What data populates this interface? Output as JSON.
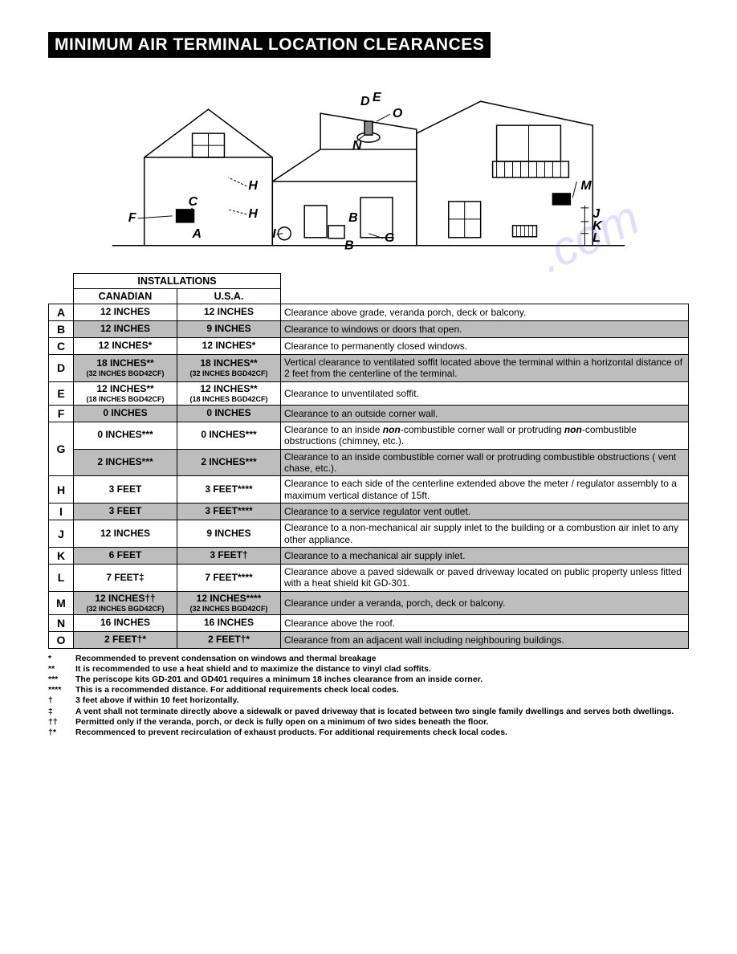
{
  "title": "MINIMUM AIR TERMINAL LOCATION CLEARANCES",
  "header": {
    "inst": "INSTALLATIONS",
    "can": "CANADIAN",
    "usa": "U.S.A."
  },
  "diagram_labels": [
    "A",
    "B",
    "C",
    "D",
    "E",
    "F",
    "G",
    "H",
    "I",
    "J",
    "K",
    "L",
    "M",
    "N",
    "O"
  ],
  "rows": [
    {
      "l": "A",
      "can": "12 INCHES",
      "usa": "12 INCHES",
      "desc": "Clearance above grade, veranda porch, deck or balcony."
    },
    {
      "l": "B",
      "can": "12 INCHES",
      "usa": "9 INCHES",
      "desc": "Clearance to windows or doors that open."
    },
    {
      "l": "C",
      "can": "12 INCHES*",
      "usa": "12 INCHES*",
      "desc": "Clearance to permanently closed windows."
    },
    {
      "l": "D",
      "can": "18 INCHES**",
      "can_sub": "(32 INCHES BGD42CF)",
      "usa": "18 INCHES**",
      "usa_sub": "(32 INCHES BGD42CF)",
      "desc": "Vertical clearance to ventilated soffit located above the terminal within a horizontal distance of 2 feet from the centerline of the terminal."
    },
    {
      "l": "E",
      "can": "12 INCHES**",
      "can_sub": "(18 INCHES BGD42CF)",
      "usa": "12 INCHES**",
      "usa_sub": "(18 INCHES BGD42CF)",
      "desc": "Clearance to unventilated soffit."
    },
    {
      "l": "F",
      "can": "0 INCHES",
      "usa": "0 INCHES",
      "desc": "Clearance to an outside corner wall."
    },
    {
      "l": "G",
      "sub": [
        {
          "can": "0 INCHES***",
          "usa": "0 INCHES***",
          "desc": "Clearance to an inside <b><i>non</i></b>-combustible corner wall or protruding <b><i>non</i></b>-combustible obstructions (chimney, etc.)."
        },
        {
          "can": "2 INCHES***",
          "usa": "2 INCHES***",
          "desc": "Clearance to an inside combustible corner wall or protruding combustible obstructions ( vent chase, etc.)."
        }
      ]
    },
    {
      "l": "H",
      "can": "3 FEET",
      "usa": "3 FEET****",
      "desc": "Clearance to each side of the centerline extended above the meter / regulator assembly to a maximum vertical distance of 15ft."
    },
    {
      "l": "I",
      "can": "3 FEET",
      "usa": "3 FEET****",
      "desc": "Clearance to a service regulator vent outlet."
    },
    {
      "l": "J",
      "can": "12 INCHES",
      "usa": "9 INCHES",
      "desc": "Clearance to a non-mechanical air supply inlet to the building or a combustion air inlet to any other appliance."
    },
    {
      "l": "K",
      "can": "6 FEET",
      "usa": "3 FEET†",
      "desc": "Clearance to a mechanical air supply inlet."
    },
    {
      "l": "L",
      "can": "7 FEET‡",
      "usa": "7 FEET****",
      "desc": "Clearance above a paved sidewalk or paved driveway located on public property unless fitted with a heat shield kit GD-301."
    },
    {
      "l": "M",
      "can": "12 INCHES††",
      "can_sub": "(32 INCHES BGD42CF)",
      "usa": "12 INCHES****",
      "usa_sub": "(32 INCHES BGD42CF)",
      "desc": "Clearance under a veranda, porch, deck or balcony."
    },
    {
      "l": "N",
      "can": "16 INCHES",
      "usa": "16 INCHES",
      "desc": "Clearance above the roof."
    },
    {
      "l": "O",
      "can": "2 FEET†*",
      "usa": "2 FEET†*",
      "desc": "Clearance from an adjacent wall including neighbouring buildings."
    }
  ],
  "footnotes": [
    {
      "sym": "*",
      "txt": "Recommended to prevent condensation on windows and thermal breakage"
    },
    {
      "sym": "**",
      "txt": "It is recommended to use a heat shield and to maximize the distance to vinyl clad soffits."
    },
    {
      "sym": "***",
      "txt": "The periscope kits GD-201 and GD401 requires a minimum 18 inches clearance from an inside corner."
    },
    {
      "sym": "****",
      "txt": "This is a recommended distance. For additional requirements check local codes."
    },
    {
      "sym": "†",
      "txt": "3 feet above if within 10 feet horizontally."
    },
    {
      "sym": "‡",
      "txt": "A vent shall not terminate directly above a sidewalk or paved driveway that is located between two single family dwellings and serves both dwellings."
    },
    {
      "sym": "††",
      "txt": "Permitted only if the veranda, porch, or deck is fully open on a minimum of two sides beneath the floor."
    },
    {
      "sym": "†*",
      "txt": "Recommenced to prevent recirculation of exhaust products. For additional requirements check local codes."
    }
  ]
}
